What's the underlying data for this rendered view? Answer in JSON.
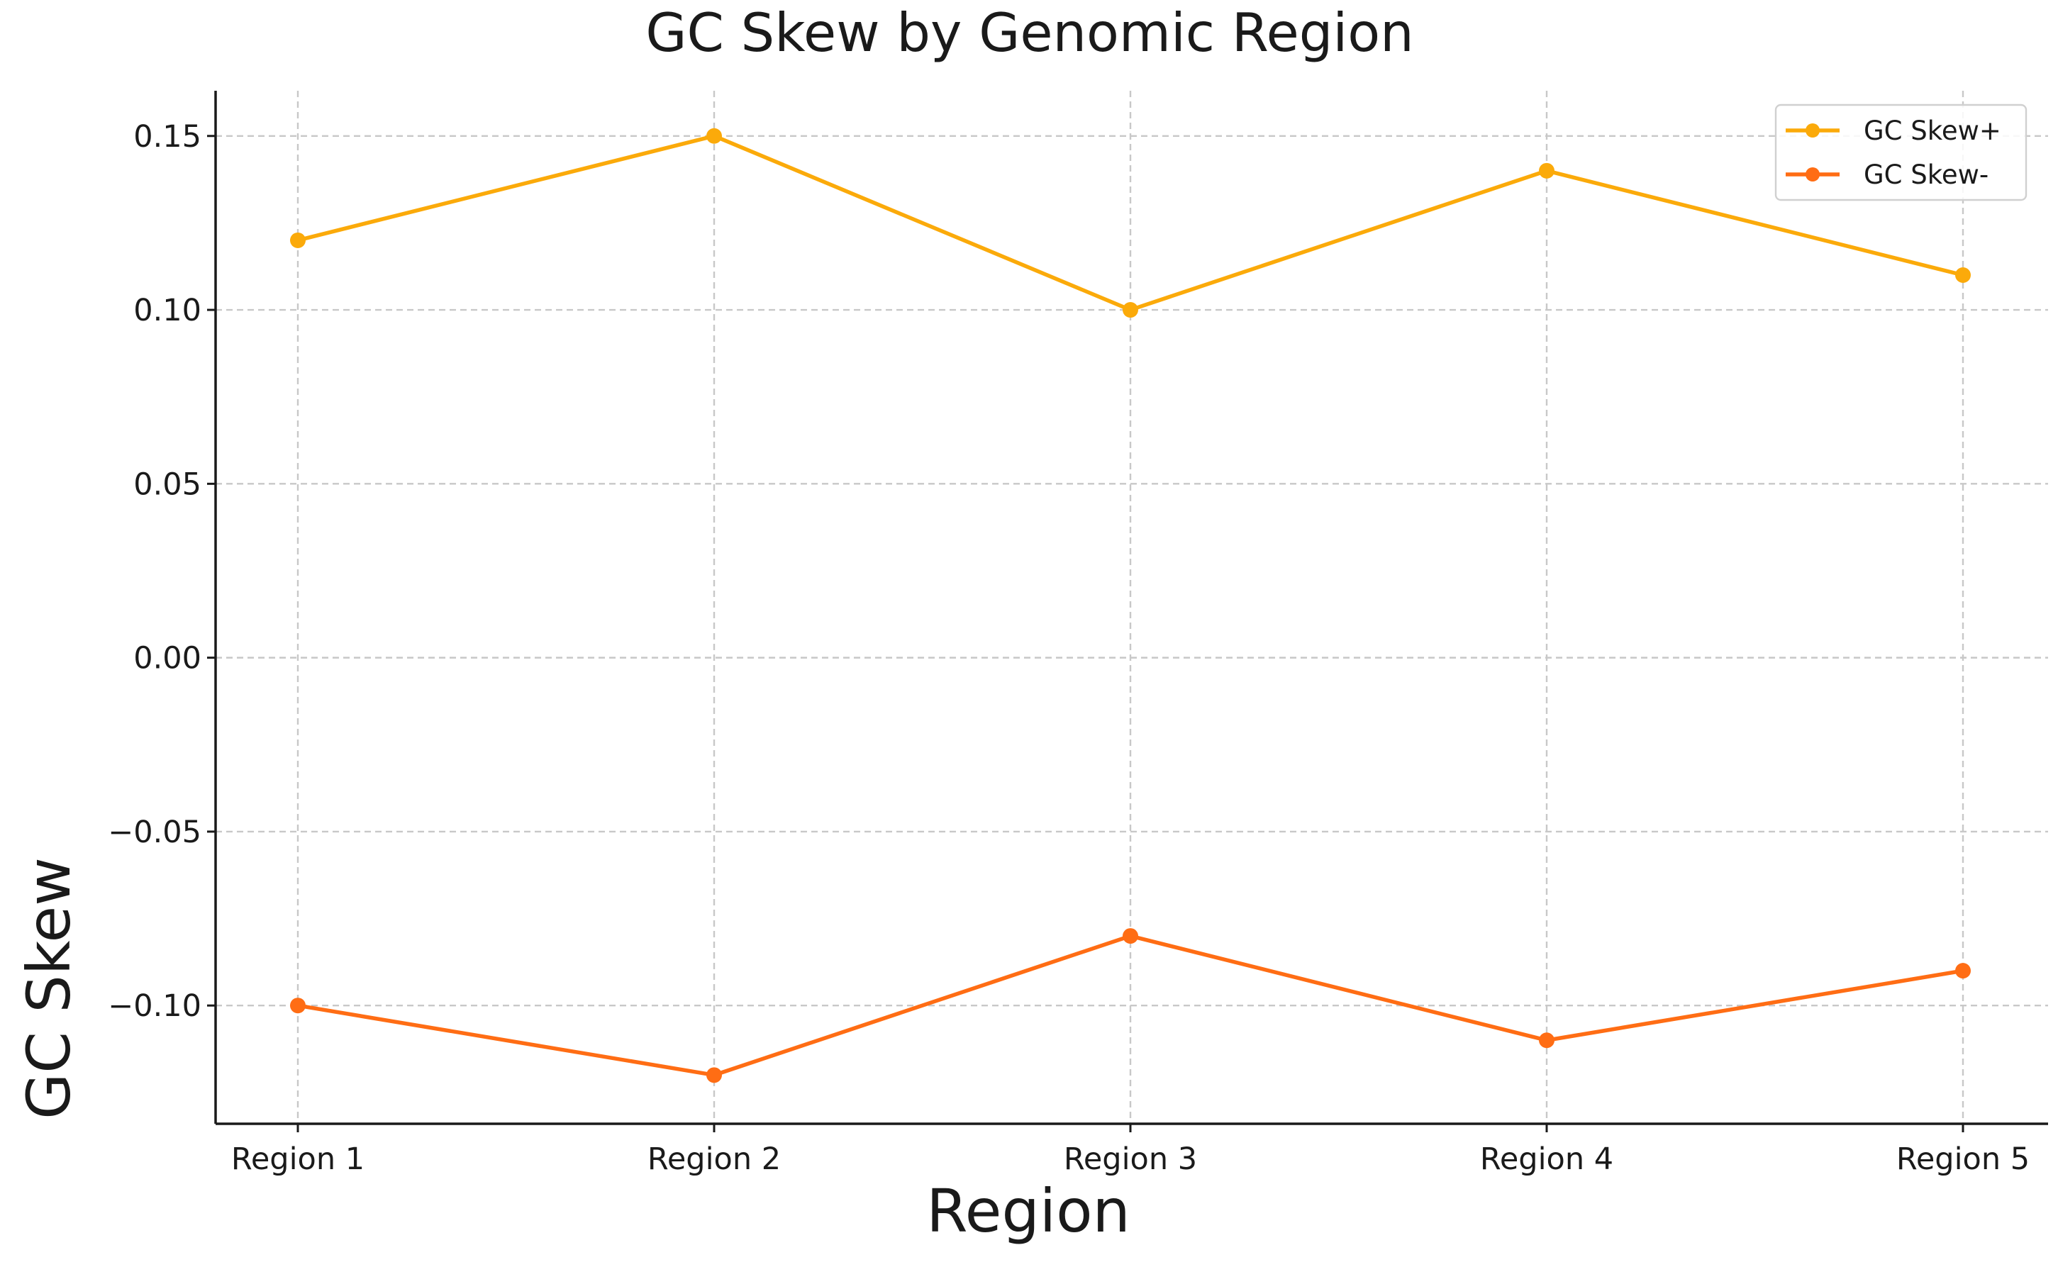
{
  "chart_data": {
    "type": "line",
    "title": "GC Skew by Genomic Region",
    "xlabel": "Region",
    "ylabel": "GC Skew",
    "categories": [
      "Region 1",
      "Region 2",
      "Region 3",
      "Region 4",
      "Region 5"
    ],
    "ylim": [
      -0.134,
      0.163
    ],
    "yticks": [
      0.15,
      0.1,
      0.05,
      0.0,
      -0.05,
      -0.1
    ],
    "ytick_labels": [
      "0.15",
      "0.10",
      "0.05",
      "0.00",
      "−0.05",
      "−0.10"
    ],
    "grid": true,
    "legend_position": "top-right",
    "series": [
      {
        "name": "GC Skew+",
        "color": "#FBAA0A",
        "marker": "circle",
        "values": [
          0.12,
          0.15,
          0.1,
          0.14,
          0.11
        ]
      },
      {
        "name": "GC Skew-",
        "color": "#FF6D14",
        "marker": "circle",
        "values": [
          -0.1,
          -0.12,
          -0.08,
          -0.11,
          -0.09
        ]
      }
    ]
  }
}
